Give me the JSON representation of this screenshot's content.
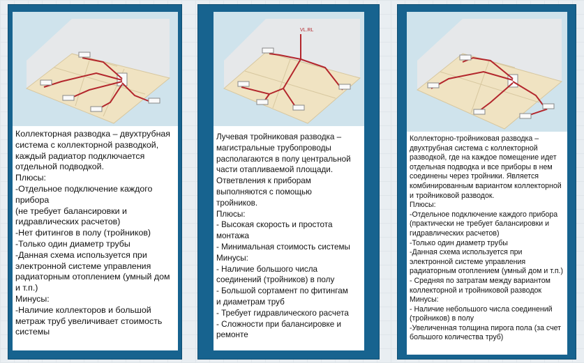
{
  "cards": [
    {
      "illustration": "collector-piping-room-illustration",
      "text": "Коллекторная разводка – двухтрубная\nсистема с коллекторной разводкой,\nкаждый радиатор подключается\nотдельной подводкой.\nПлюсы:\n-Отдельное подключение каждого\nприбора\n(не требует балансировки и\nгидравлических расчетов)\n-Нет фитингов в полу (тройников)\n-Только один диаметр трубы\n-Данная схема используется при\nэлектронной системе управления\nрадиаторным отоплением (умный дом\nи т.п.)\nМинусы:\n-Наличие коллекторов и большой\nметраж труб увеличивает стоимость\nсистемы"
    },
    {
      "illustration": "radial-tee-piping-room-illustration",
      "image_label": "VL.RL",
      "text": "Лучевая тройниковая разводка –\nмагистральные трубопроводы\nрасполагаются в полу центральной\nчасти отапливаемой площади.\nОтветвления к приборам\nвыполняются с помощью\nтройников.\nПлюсы:\n- Высокая скорость и простота\nмонтажа\n- Минимальная стоимость системы\nМинусы:\n- Наличие большого числа\nсоединений (тройников) в полу\n- Большой сортамент по фитингам\nи диаметрам труб\n- Требует гидравлического расчета\n- Сложности при балансировке и\nремонте"
    },
    {
      "illustration": "collector-tee-piping-room-illustration",
      "text": "Коллекторно-тройниковая разводка –\nдвухтрубная система с коллекторной\nразводкой, где на каждое помещение идет\nотдельная подводка и все приборы в нем\nсоединены через тройники. Является\nкомбинированным вариантом коллекторной\nи тройниковой разводок.\nПлюсы:\n-Отдельное подключение каждого прибора\n(практически не требует балансировки и\nгидравлических расчетов)\n-Только один диаметр трубы\n-Данная схема используется при\nэлектронной системе управления\nрадиаторным отоплением (умный дом и т.п.)\n- Средняя по затратам между вариантом\nколлекторной и тройниковой разводок\nМинусы:\n- Наличие небольшого числа соединений\n(тройников) в полу\n-Увеличенная толщина пирога пола (за счет\nбольшого количества труб)"
    }
  ],
  "colors": {
    "card_frame": "#17638f",
    "pipe": "#b3262c",
    "floor": "#f0e3c2",
    "wall": "#e6e8ea"
  }
}
